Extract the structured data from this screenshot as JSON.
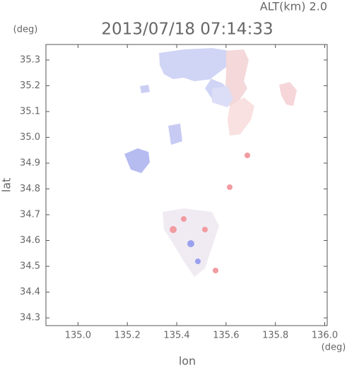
{
  "chart_data": {
    "type": "map",
    "title": "2013/07/18 07:14:33",
    "subtitle": "ALT(km) 2.0",
    "x_label": "lon",
    "x_unit": "(deg)",
    "y_label": "lat",
    "y_unit": "(deg)",
    "xlim": [
      134.87,
      136.01
    ],
    "xticks": [
      {
        "value": 135.0,
        "label": "135.0"
      },
      {
        "value": 135.2,
        "label": "135.2"
      },
      {
        "value": 135.4,
        "label": "135.4"
      },
      {
        "value": 135.6,
        "label": "135.6"
      },
      {
        "value": 135.8,
        "label": "135.8"
      },
      {
        "value": 136.0,
        "label": "136.0"
      }
    ],
    "ylim": [
      34.27,
      35.36
    ],
    "yticks": [
      {
        "value": 34.3,
        "label": "34.3"
      },
      {
        "value": 34.4,
        "label": "34.4"
      },
      {
        "value": 34.5,
        "label": "34.5"
      },
      {
        "value": 34.6,
        "label": "34.6"
      },
      {
        "value": 34.7,
        "label": "34.7"
      },
      {
        "value": 34.8,
        "label": "34.8"
      },
      {
        "value": 34.9,
        "label": "34.9"
      },
      {
        "value": 35.0,
        "label": "35.0"
      },
      {
        "value": 35.1,
        "label": "35.1"
      },
      {
        "value": 35.2,
        "label": "35.2"
      },
      {
        "value": 35.3,
        "label": "35.3"
      }
    ]
  }
}
